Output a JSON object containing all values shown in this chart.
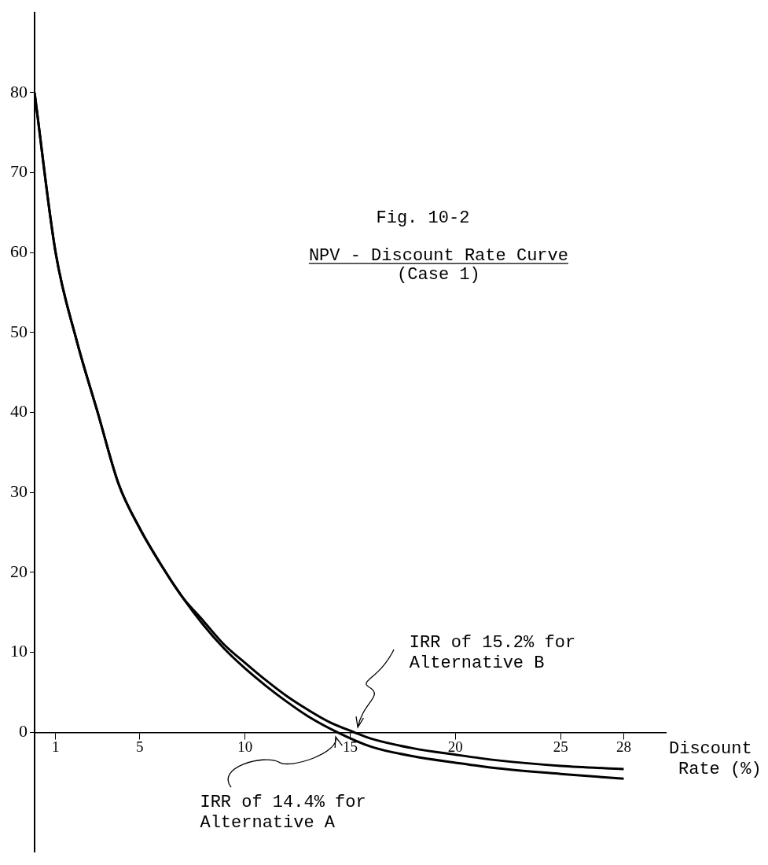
{
  "chart_data": {
    "type": "line",
    "title": "Fig. 10-2",
    "subtitle": "NPV - Discount Rate Curve",
    "xlabel": "Discount Rate (%)",
    "xlim": [
      0,
      30
    ],
    "xticks": [
      1,
      5,
      10,
      15,
      20,
      25,
      28
    ],
    "ylim": [
      -15,
      90
    ],
    "yticks": [
      0,
      10,
      20,
      30,
      40,
      50,
      60,
      70,
      80
    ],
    "series": [
      {
        "color": "#000000",
        "x": [
          0,
          1,
          2,
          3,
          4,
          5,
          6,
          7,
          8,
          9,
          10,
          11,
          12,
          13,
          14.4,
          16,
          18,
          20,
          22,
          25,
          28
        ],
        "values": [
          80,
          60,
          49,
          40,
          31,
          25.5,
          21,
          17,
          13.5,
          10.5,
          8,
          5.8,
          3.8,
          2,
          0,
          -1.8,
          -3,
          -3.8,
          -4.5,
          -5.2,
          -5.8
        ]
      },
      {
        "color": "#000000",
        "x": [
          0,
          1,
          2,
          3,
          4,
          5,
          6,
          7,
          8,
          9,
          10,
          11,
          12,
          13,
          14,
          15.2,
          16,
          18,
          20,
          22,
          25,
          28
        ],
        "values": [
          80,
          60,
          49,
          40,
          31,
          25.5,
          21,
          17,
          14,
          11,
          8.7,
          6.5,
          4.5,
          2.8,
          1.3,
          0,
          -0.8,
          -2,
          -2.8,
          -3.5,
          -4.2,
          -4.6
        ]
      }
    ],
    "annotations": [
      "(Case 1)",
      {
        "text": "IRR of 15.2% for Alternative B",
        "x": 15.2,
        "y": 0
      },
      {
        "text": "IRR of 14.4% for Alternative A",
        "x": 14.4,
        "y": 0
      }
    ]
  }
}
